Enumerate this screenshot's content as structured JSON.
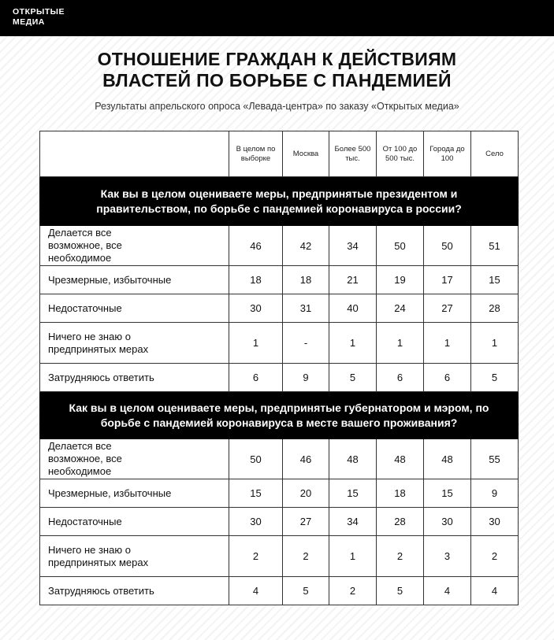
{
  "logo": {
    "line1": "ОТКРЫТЫЕ",
    "line2": "МЕДИА"
  },
  "title": {
    "line1": "ОТНОШЕНИЕ ГРАЖДАН К ДЕЙСТВИЯМ",
    "line2": "ВЛАСТЕЙ ПО БОРЬБЕ С ПАНДЕМИЕЙ"
  },
  "subtitle": "Результаты апрельского опроса «Левада-центра» по заказу «Открытых медиа»",
  "chart_data": {
    "type": "table",
    "columns": [
      "В целом по выборке",
      "Москва",
      "Более 500 тыс.",
      "От 100 до 500 тыс.",
      "Города до 100",
      "Село"
    ],
    "sections": [
      {
        "question": "Как вы в целом оцениваете меры, предпринятые президентом и правительством, по борьбе с пандемией коронавируса в россии?",
        "rows": [
          {
            "label": "Делается все возможное, все необходимое",
            "values": [
              "46",
              "42",
              "34",
              "50",
              "50",
              "51"
            ]
          },
          {
            "label": "Чрезмерные, избыточные",
            "values": [
              "18",
              "18",
              "21",
              "19",
              "17",
              "15"
            ]
          },
          {
            "label": "Недостаточные",
            "values": [
              "30",
              "31",
              "40",
              "24",
              "27",
              "28"
            ]
          },
          {
            "label": "Ничего не знаю о предпринятых мерах",
            "values": [
              "1",
              "-",
              "1",
              "1",
              "1",
              "1"
            ]
          },
          {
            "label": "Затрудняюсь ответить",
            "values": [
              "6",
              "9",
              "5",
              "6",
              "6",
              "5"
            ]
          }
        ]
      },
      {
        "question": "Как вы в целом оцениваете меры, предпринятые губернатором и мэром, по борьбе с пандемией коронавируса в месте вашего проживания?",
        "rows": [
          {
            "label": "Делается все возможное, все необходимое",
            "values": [
              "50",
              "46",
              "48",
              "48",
              "48",
              "55"
            ]
          },
          {
            "label": "Чрезмерные, избыточные",
            "values": [
              "15",
              "20",
              "15",
              "18",
              "15",
              "9"
            ]
          },
          {
            "label": "Недостаточные",
            "values": [
              "30",
              "27",
              "34",
              "28",
              "30",
              "30"
            ]
          },
          {
            "label": "Ничего не знаю о предпринятых мерах",
            "values": [
              "2",
              "2",
              "1",
              "2",
              "3",
              "2"
            ]
          },
          {
            "label": "Затрудняюсь ответить",
            "values": [
              "4",
              "5",
              "2",
              "5",
              "4",
              "4"
            ]
          }
        ]
      }
    ]
  }
}
